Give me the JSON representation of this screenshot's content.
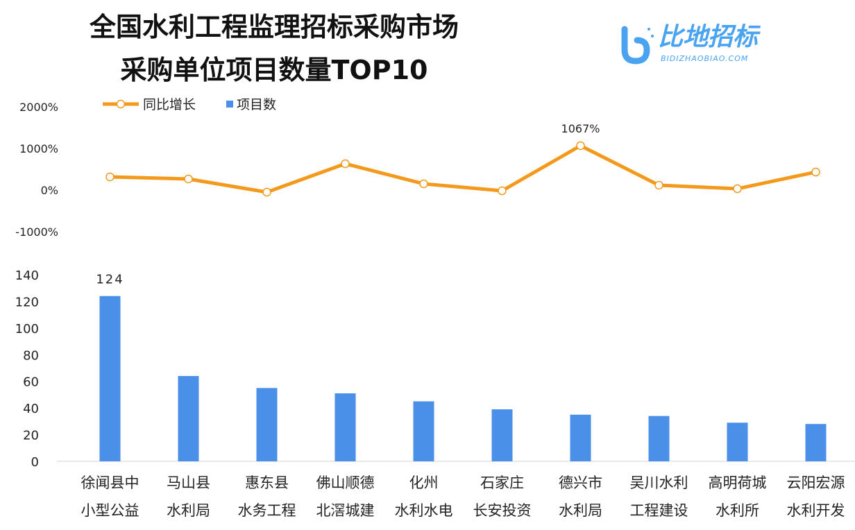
{
  "title_line1": "全国水利工程监理招标采购市场",
  "title_line2": "采购单位项目数量TOP10",
  "logo": {
    "text": "比地招标",
    "subtext": "BIDIZHAOBIAO.COM"
  },
  "colors": {
    "line": "#F39A1C",
    "bar": "#4A8FE8",
    "logo": "#4AA3F0"
  },
  "chart_data": {
    "type": "bar+line",
    "categories": [
      [
        "徐闻县中",
        "小型公益"
      ],
      [
        "马山县",
        "水利局"
      ],
      [
        "惠东县",
        "水务工程"
      ],
      [
        "佛山顺德",
        "北滘城建"
      ],
      [
        "化州",
        "水利水电"
      ],
      [
        "石家庄",
        "长安投资"
      ],
      [
        "德兴市",
        "水利局"
      ],
      [
        "吴川水利",
        "工程建设"
      ],
      [
        "高明荷城",
        "水利所"
      ],
      [
        "云阳宏源",
        "水利开发"
      ]
    ],
    "legend": [
      "同比增长",
      "项目数"
    ],
    "legend_position": "top-left",
    "line_series": {
      "name": "同比增长",
      "unit": "%",
      "values": [
        317,
        267,
        -50,
        633,
        150,
        -17,
        1067,
        117,
        33,
        433
      ],
      "ylim": [
        -1000,
        2000
      ],
      "yticks": [
        "2000%",
        "1000%",
        "0%",
        "-1000%"
      ],
      "data_labels": {
        "6": "1067%"
      }
    },
    "bar_series": {
      "name": "项目数",
      "values": [
        124,
        64,
        55,
        51,
        45,
        39,
        35,
        34,
        29,
        28
      ],
      "ylim": [
        0,
        140
      ],
      "yticks": [
        "140",
        "120",
        "100",
        "80",
        "60",
        "40",
        "20",
        "0"
      ],
      "data_labels": {
        "0": "124"
      }
    },
    "grid": false
  }
}
